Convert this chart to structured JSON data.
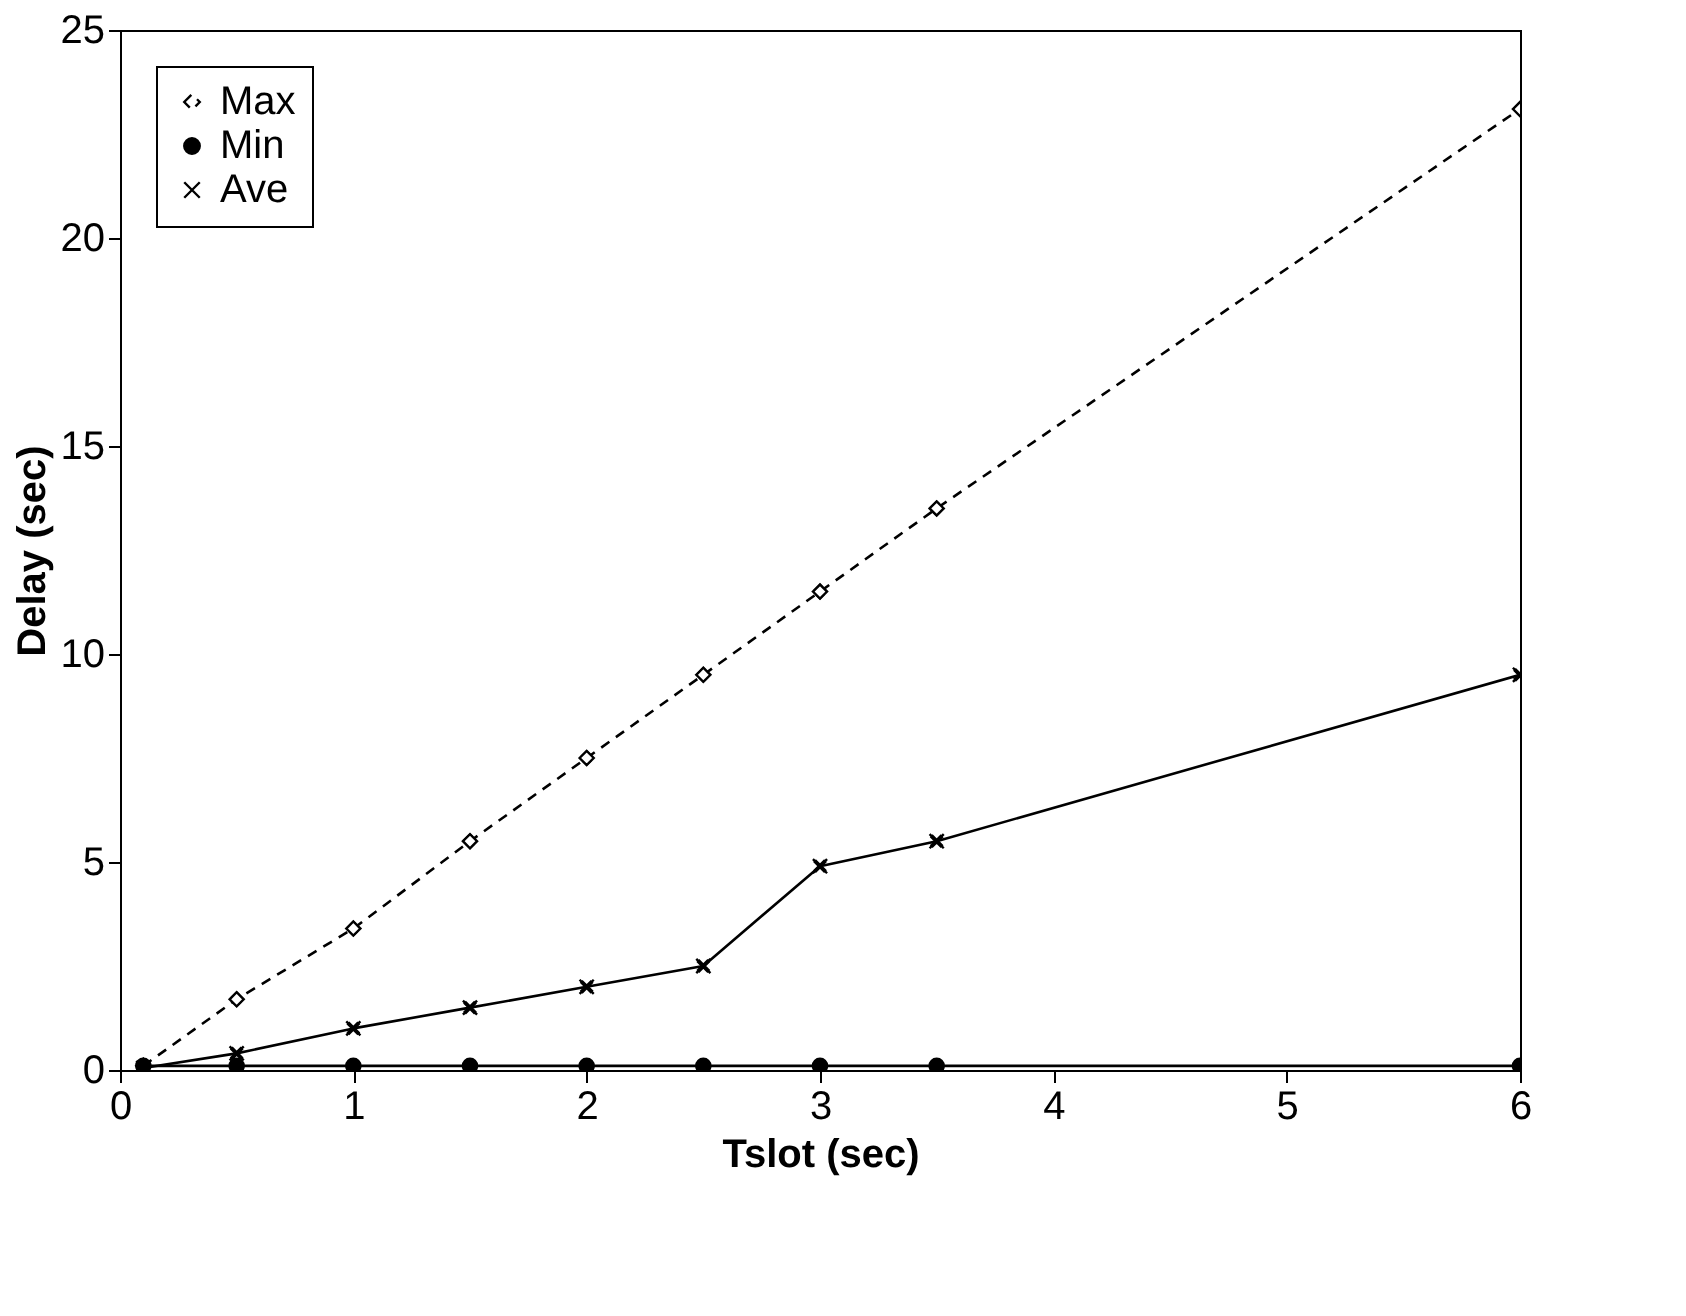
{
  "chart_data": {
    "type": "line",
    "xlabel": "Tslot (sec)",
    "ylabel": "Delay (sec)",
    "xlim": [
      0,
      6
    ],
    "xticks": [
      0,
      1,
      2,
      3,
      4,
      5,
      6
    ],
    "ylim": [
      0,
      25
    ],
    "yticks": [
      0,
      5,
      10,
      15,
      20,
      25
    ],
    "grid": false,
    "legend": "top left",
    "series": [
      {
        "name": "Max",
        "color": "#000000",
        "marker": "diamond",
        "line_style": "dashed",
        "x": [
          0.1,
          0.5,
          1,
          1.5,
          2,
          2.5,
          3,
          3.5,
          6
        ],
        "values": [
          0.1,
          1.7,
          3.4,
          5.5,
          7.5,
          9.5,
          11.5,
          13.5,
          23.1
        ]
      },
      {
        "name": "Min",
        "color": "#000000",
        "marker": "circle",
        "line_style": "solid",
        "x": [
          0.1,
          0.5,
          1,
          1.5,
          2,
          2.5,
          3,
          3.5,
          6
        ],
        "values": [
          0.1,
          0.1,
          0.1,
          0.1,
          0.1,
          0.1,
          0.1,
          0.1,
          0.1
        ]
      },
      {
        "name": "Ave",
        "color": "#000000",
        "marker": "cross",
        "line_style": "solid",
        "x": [
          0.1,
          0.5,
          1,
          1.5,
          2,
          2.5,
          3,
          3.5,
          6
        ],
        "values": [
          0.05,
          0.4,
          1.0,
          1.5,
          2.0,
          2.5,
          4.9,
          5.5,
          9.5
        ]
      }
    ]
  }
}
